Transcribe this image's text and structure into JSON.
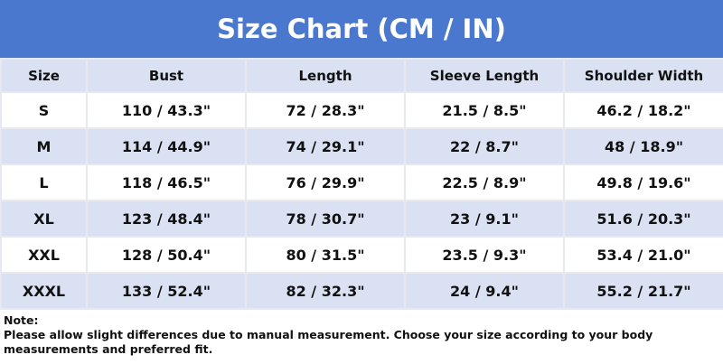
{
  "header": {
    "title": "Size Chart (CM / IN)"
  },
  "table": {
    "columns": [
      "Size",
      "Bust",
      "Length",
      "Sleeve Length",
      "Shoulder Width"
    ],
    "rows": [
      [
        "S",
        "110 / 43.3\"",
        "72 / 28.3\"",
        "21.5 / 8.5\"",
        "46.2 / 18.2\""
      ],
      [
        "M",
        "114 / 44.9\"",
        "74 / 29.1\"",
        "22 / 8.7\"",
        "48 / 18.9\""
      ],
      [
        "L",
        "118 / 46.5\"",
        "76 / 29.9\"",
        "22.5 / 8.9\"",
        "49.8 / 19.6\""
      ],
      [
        "XL",
        "123 / 48.4\"",
        "78 / 30.7\"",
        "23 / 9.1\"",
        "51.6 / 20.3\""
      ],
      [
        "XXL",
        "128 / 50.4\"",
        "80 / 31.5\"",
        "23.5 / 9.3\"",
        "53.4 / 21.0\""
      ],
      [
        "XXXL",
        "133 / 52.4\"",
        "82 / 32.3\"",
        "24 / 9.4\"",
        "55.2 / 21.7\""
      ]
    ]
  },
  "note": {
    "label": "Note:",
    "text": "Please allow slight differences due to manual measurement. Choose your size according to your body measurements and preferred fit."
  }
}
